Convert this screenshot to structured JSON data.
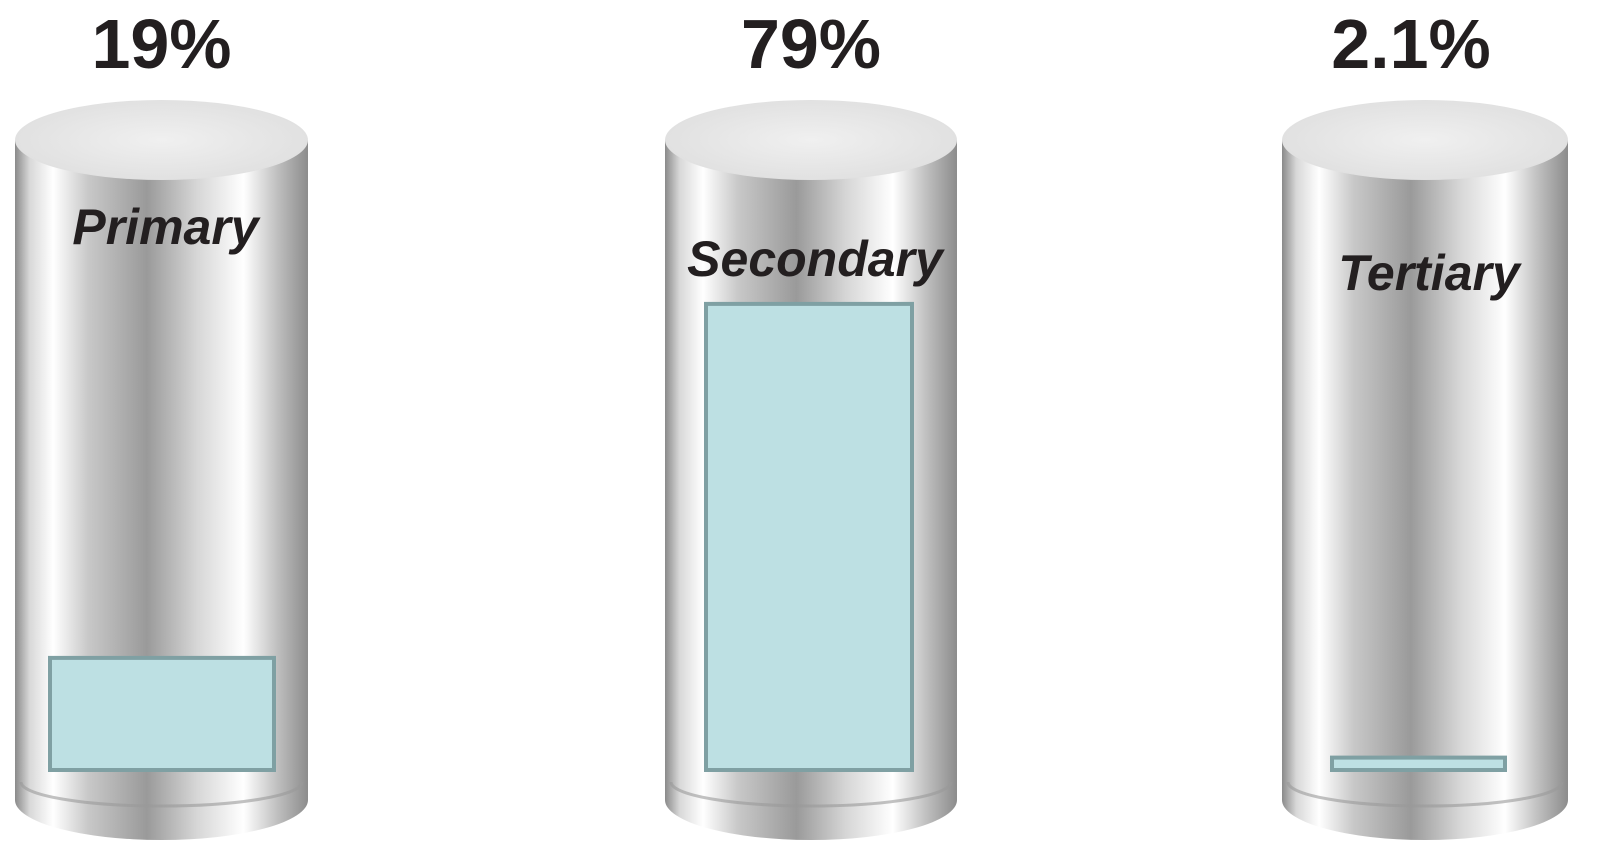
{
  "chart_data": {
    "type": "bar",
    "categories": [
      "Primary",
      "Secondary",
      "Tertiary"
    ],
    "values": [
      19,
      79,
      2.1
    ],
    "value_labels": [
      "19%",
      "79%",
      "2.1%"
    ],
    "color": "#bde0e3"
  }
}
